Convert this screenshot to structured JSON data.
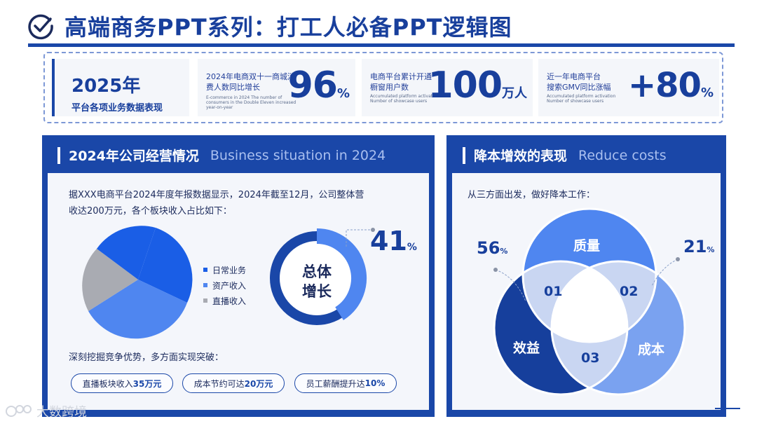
{
  "header": {
    "title": "高端商务PPT系列：打工人必备PPT逻辑图",
    "icon": "check-circle-icon"
  },
  "stats": {
    "year": "2025年",
    "year_subtitle": "平台各项业务数据表现",
    "cards": [
      {
        "label_line1": "2024年电商双十一商城消",
        "label_line2": "费人数同比增长",
        "sub_line1": "E-commerce in 2024 The number of",
        "sub_line2": "consumers in the Double Eleven increased",
        "sub_line3": "year-on-year",
        "value": "96",
        "unit": "%"
      },
      {
        "label_line1": "电商平台累计开通",
        "label_line2": "橱窗用户数",
        "sub_line1": "Accumulated platform activation",
        "sub_line2": "Number of showcase users",
        "value": "100",
        "unit": "万人"
      },
      {
        "label_line1": "近一年电商平台",
        "label_line2": "搜索GMV同比涨幅",
        "sub_line1": "Accumulated platform activation",
        "sub_line2": "Number of showcase users",
        "value": "+80",
        "unit": "%"
      }
    ]
  },
  "left_panel": {
    "title_cn": "2024年公司经营情况",
    "title_en": "Business situation in 2024",
    "intro_line1": "据XXX电商平台2024年度年报数据显示，2024年截至12月，公司整体营",
    "intro_line2": "收达200万元，各个板块收入占比如下：",
    "legend": [
      {
        "label": "日常业务",
        "color": "#1a5ee6"
      },
      {
        "label": "资产收入",
        "color": "#4f86f0"
      },
      {
        "label": "直播收入",
        "color": "#a9abb2"
      }
    ],
    "donut_label_line1": "总体",
    "donut_label_line2": "增长",
    "growth_value": "41",
    "growth_unit": "%",
    "growth_fraction": 0.41,
    "breakthrough_text": "深刻挖掘竞争优势，多方面实现突破：",
    "pills": [
      {
        "prefix": "直播板块收入",
        "highlight": "35万元"
      },
      {
        "prefix": "成本节约可达",
        "highlight": "20万元"
      },
      {
        "prefix": "员工薪酬提升达",
        "highlight": "10%"
      }
    ]
  },
  "right_panel": {
    "title_cn": "降本增效的表现",
    "title_en": "Reduce costs",
    "intro": "从三方面出发，做好降本工作：",
    "circles": {
      "top": "质量",
      "left": "效益",
      "right": "成本"
    },
    "overlaps": [
      "01",
      "02",
      "03"
    ],
    "pct_left_value": "56",
    "pct_left_unit": "%",
    "pct_right_value": "21",
    "pct_right_unit": "%"
  },
  "watermark": "大数跨境",
  "colors": {
    "primary": "#1a47a8",
    "dark_blue": "#163f9c",
    "medium_blue": "#4f86f0",
    "light_blue": "#7aa2f0",
    "gray": "#a9abb2"
  }
}
